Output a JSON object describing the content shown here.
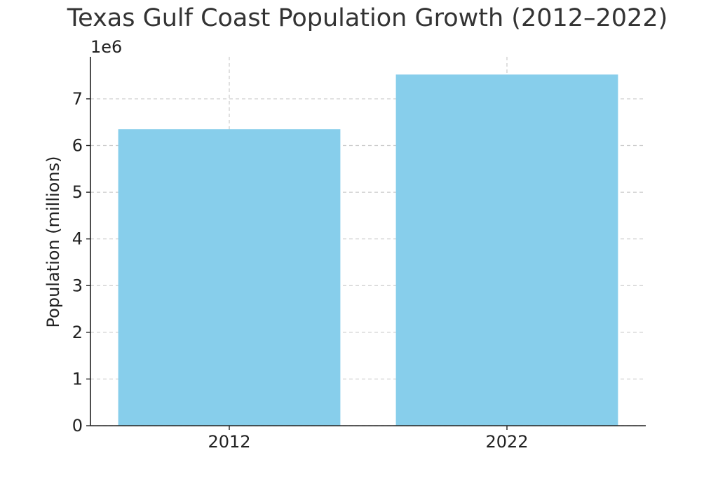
{
  "chart_data": {
    "type": "bar",
    "title": "Texas Gulf Coast Population Growth (2012–2022)",
    "xlabel": "",
    "ylabel": "Population (millions)",
    "y_offset_text": "1e6",
    "categories": [
      "2012",
      "2022"
    ],
    "values": [
      6350000,
      7520000
    ],
    "ylim": [
      0,
      7900000
    ],
    "y_ticks": [
      0,
      1000000,
      2000000,
      3000000,
      4000000,
      5000000,
      6000000,
      7000000
    ],
    "y_tick_labels": [
      "0",
      "1",
      "2",
      "3",
      "4",
      "5",
      "6",
      "7"
    ],
    "grid": true,
    "bar_color": "#87CEEB"
  }
}
